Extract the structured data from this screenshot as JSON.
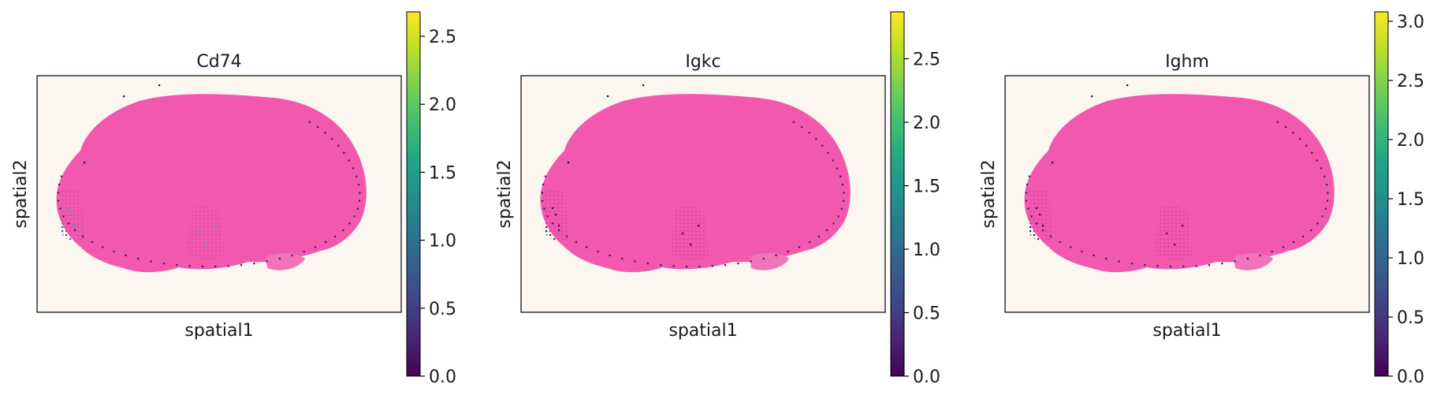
{
  "chart_data": [
    {
      "type": "heatmap",
      "title": "Cd74",
      "xlabel": "spatial1",
      "ylabel": "spatial2",
      "colormap": "viridis",
      "colorbar": {
        "min": 0.0,
        "max": 2.68,
        "ticks": [
          "0.0",
          "0.5",
          "1.0",
          "1.5",
          "2.0",
          "2.5"
        ]
      },
      "background_image": "H&E tissue section (pink)",
      "grid": false
    },
    {
      "type": "heatmap",
      "title": "Igkc",
      "xlabel": "spatial1",
      "ylabel": "spatial2",
      "colormap": "viridis",
      "colorbar": {
        "min": 0.0,
        "max": 2.87,
        "ticks": [
          "0.0",
          "0.5",
          "1.0",
          "1.5",
          "2.0",
          "2.5"
        ]
      },
      "background_image": "H&E tissue section (pink)",
      "grid": false
    },
    {
      "type": "heatmap",
      "title": "Ighm",
      "xlabel": "spatial1",
      "ylabel": "spatial2",
      "colormap": "viridis",
      "colorbar": {
        "min": 0.0,
        "max": 3.08,
        "ticks": [
          "0.0",
          "0.5",
          "1.0",
          "1.5",
          "2.0",
          "2.5",
          "3.0"
        ]
      },
      "background_image": "H&E tissue section (pink)",
      "grid": false
    }
  ]
}
